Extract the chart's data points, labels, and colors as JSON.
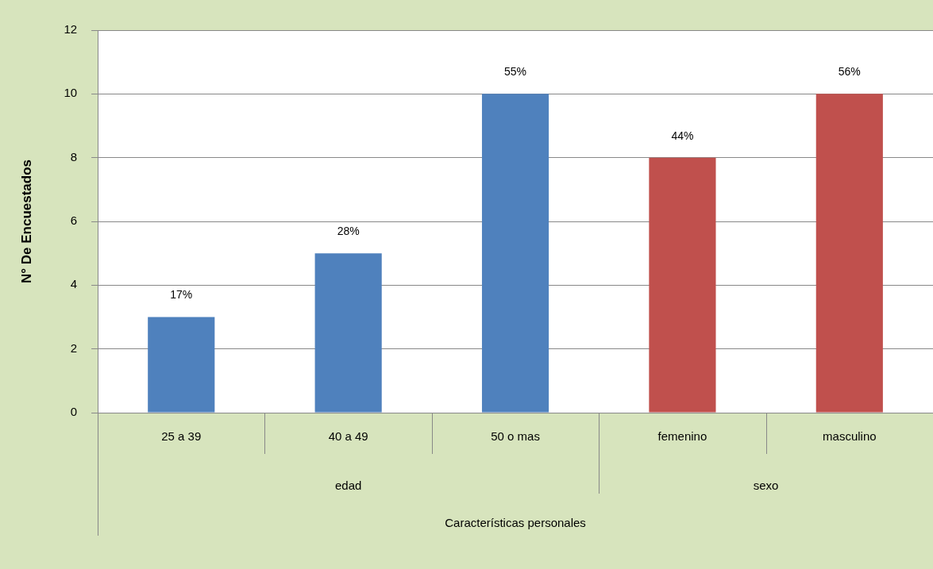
{
  "chart_data": {
    "type": "bar",
    "ylabel": "N° De Encuestados",
    "categories": [
      "25 a 39",
      "40 a 49",
      "50 o mas",
      "femenino",
      "masculino"
    ],
    "values": [
      3,
      5,
      10,
      8,
      10
    ],
    "colors": [
      "#4f81bd",
      "#4f81bd",
      "#4f81bd",
      "#c0504d",
      "#c0504d"
    ],
    "annotations": [
      "edad",
      "sexo",
      "Características personales",
      {
        "text": "17%",
        "x": "25 a 39",
        "y": 3
      },
      {
        "text": "28%",
        "x": "40 a 49",
        "y": 5
      },
      {
        "text": "55%",
        "x": "50 o mas",
        "y": 10
      },
      {
        "text": "44%",
        "x": "femenino",
        "y": 8
      },
      {
        "text": "56%",
        "x": "masculino",
        "y": 10
      }
    ],
    "ylim": [
      0,
      12
    ],
    "yticks": [
      0,
      2,
      4,
      6,
      8,
      10,
      12
    ],
    "grid": "y",
    "legend": false
  }
}
